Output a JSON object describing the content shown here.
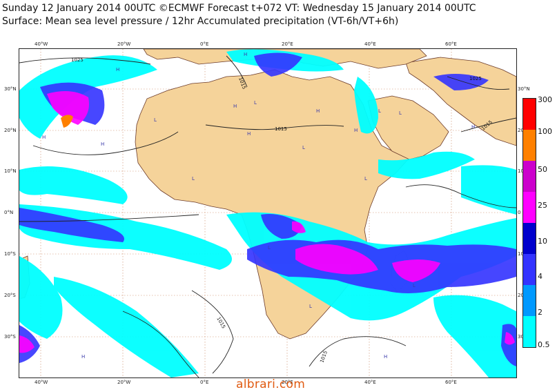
{
  "header": {
    "line1": "Sunday 12 January 2014 00UTC ©ECMWF Forecast t+072 VT: Wednesday 15 January 2014 00UTC",
    "line2": "Surface: Mean sea level pressure / 12hr Accumulated precipitation (VT-6h/VT+6h)"
  },
  "lon_ticks_top": [
    "40°W",
    "20°W",
    "0°E",
    "20°E",
    "40°E",
    "60°E"
  ],
  "lon_ticks_bottom": [
    "40°W",
    "20°W",
    "0°E",
    "20°E",
    "40°E",
    "60°E"
  ],
  "lat_ticks_left": [
    "30°N",
    "20°N",
    "10°N",
    "0°N",
    "10°S",
    "20°S",
    "30°S"
  ],
  "lat_ticks_right": [
    "30°N",
    "20",
    "10",
    "0",
    "10",
    "20",
    "30"
  ],
  "isobar_labels": [
    "1025",
    "1015",
    "1015",
    "1025",
    "1015",
    "1015",
    "1015"
  ],
  "pressure_markers": [
    "H",
    "L"
  ],
  "legend": {
    "labels": [
      "300",
      "100",
      "50",
      "25",
      "10",
      "4",
      "2",
      "0.5"
    ],
    "colors": [
      "#ff0000",
      "#ff8000",
      "#cc00cc",
      "#ff00ff",
      "#0000cc",
      "#3333ff",
      "#0099ff",
      "#00ffff"
    ]
  },
  "colors": {
    "land": "#f5d39a",
    "ocean": "#ffffff",
    "coast": "#6b3a2a",
    "isobar": "#222222",
    "grid": "#c9855f"
  },
  "watermark": "albrari.com"
}
